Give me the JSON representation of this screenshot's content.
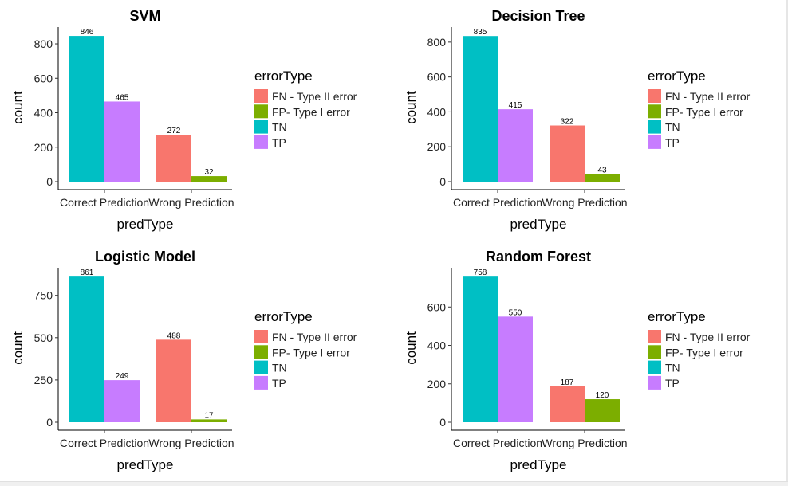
{
  "chart_data": [
    {
      "type": "bar",
      "title": "SVM",
      "xlabel": "predType",
      "ylabel": "count",
      "categories": [
        "Correct Prediction",
        "Wrong Prediction"
      ],
      "yticks": [
        0,
        200,
        400,
        600,
        800
      ],
      "ylim": [
        0,
        888
      ],
      "legend_title": "errorType",
      "bars": [
        {
          "category": "Correct Prediction",
          "errorType": "TN",
          "value": 846
        },
        {
          "category": "Correct Prediction",
          "errorType": "TP",
          "value": 465
        },
        {
          "category": "Wrong Prediction",
          "errorType": "FN - Type II error",
          "value": 272
        },
        {
          "category": "Wrong Prediction",
          "errorType": "FP- Type I error",
          "value": 32
        }
      ]
    },
    {
      "type": "bar",
      "title": "Decision Tree",
      "xlabel": "predType",
      "ylabel": "count",
      "categories": [
        "Correct Prediction",
        "Wrong Prediction"
      ],
      "yticks": [
        0,
        200,
        400,
        600,
        800
      ],
      "ylim": [
        0,
        877
      ],
      "legend_title": "errorType",
      "bars": [
        {
          "category": "Correct Prediction",
          "errorType": "TN",
          "value": 835
        },
        {
          "category": "Correct Prediction",
          "errorType": "TP",
          "value": 415
        },
        {
          "category": "Wrong Prediction",
          "errorType": "FN - Type II error",
          "value": 322
        },
        {
          "category": "Wrong Prediction",
          "errorType": "FP- Type I error",
          "value": 43
        }
      ]
    },
    {
      "type": "bar",
      "title": "Logistic Model",
      "xlabel": "predType",
      "ylabel": "count",
      "categories": [
        "Correct Prediction",
        "Wrong Prediction"
      ],
      "yticks": [
        0,
        250,
        500,
        750
      ],
      "ylim": [
        0,
        904
      ],
      "legend_title": "errorType",
      "bars": [
        {
          "category": "Correct Prediction",
          "errorType": "TN",
          "value": 861
        },
        {
          "category": "Correct Prediction",
          "errorType": "TP",
          "value": 249
        },
        {
          "category": "Wrong Prediction",
          "errorType": "FN - Type II error",
          "value": 488
        },
        {
          "category": "Wrong Prediction",
          "errorType": "FP- Type I error",
          "value": 17
        }
      ]
    },
    {
      "type": "bar",
      "title": "Random Forest",
      "xlabel": "predType",
      "ylabel": "count",
      "categories": [
        "Correct Prediction",
        "Wrong Prediction"
      ],
      "yticks": [
        0,
        200,
        400,
        600
      ],
      "ylim": [
        0,
        796
      ],
      "legend_title": "errorType",
      "bars": [
        {
          "category": "Correct Prediction",
          "errorType": "TN",
          "value": 758
        },
        {
          "category": "Correct Prediction",
          "errorType": "TP",
          "value": 550
        },
        {
          "category": "Wrong Prediction",
          "errorType": "FN - Type II error",
          "value": 187
        },
        {
          "category": "Wrong Prediction",
          "errorType": "FP- Type I error",
          "value": 120
        }
      ]
    }
  ],
  "legend": {
    "title": "errorType",
    "items": [
      {
        "label": "FN - Type II error",
        "key": "FN - Type II error",
        "color": "#F8766D"
      },
      {
        "label": "FP- Type I error",
        "key": "FP- Type I error",
        "color": "#7CAE00"
      },
      {
        "label": "TN",
        "key": "TN",
        "color": "#00BFC4"
      },
      {
        "label": "TP",
        "key": "TP",
        "color": "#C77CFF"
      }
    ]
  }
}
